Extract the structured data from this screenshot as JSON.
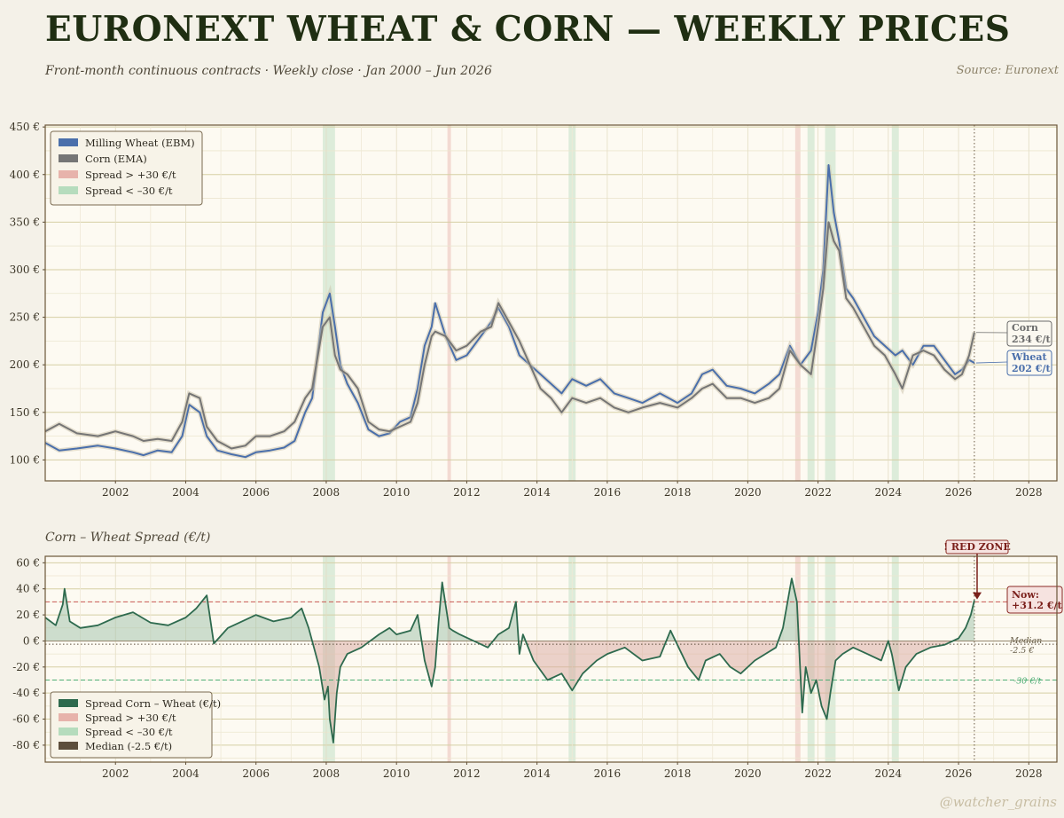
{
  "header": {
    "title": "EURONEXT WHEAT & CORN — WEEKLY PRICES",
    "subtitle": "Front-month continuous contracts  ·  Weekly close  ·  Jan 2000 – Jun 2026",
    "source": "Source: Euronext"
  },
  "lower_panel_title": "Corn – Wheat Spread (€/t)",
  "watermark": "@watcher_grains",
  "colors": {
    "wheat": "#4a6fab",
    "corn": "#757575",
    "spread": "#2e6a4e",
    "red_zone": "#e7b3ab",
    "green_zone": "#b6dcbd",
    "median": "#5c4e3c",
    "background": "#f4f1e8",
    "panel": "#fdfaf2",
    "title": "#1f2e12"
  },
  "chart_data": [
    {
      "type": "line",
      "panel": "prices",
      "ylim": [
        78,
        452
      ],
      "xlim": [
        2000.0,
        2028.8
      ],
      "y_ticks": [
        "100 €",
        "150 €",
        "200 €",
        "250 €",
        "300 €",
        "350 €",
        "400 €",
        "450 €"
      ],
      "x_ticks": [
        "2002",
        "2004",
        "2006",
        "2008",
        "2010",
        "2012",
        "2014",
        "2016",
        "2018",
        "2020",
        "2022",
        "2024",
        "2026",
        "2028"
      ],
      "grid": true,
      "legend_position": "top-left",
      "legend": [
        "Milling Wheat (EBM)",
        "Corn (EMA)",
        "Spread > +30 €/t",
        "Spread < –30 €/t"
      ],
      "series": [
        {
          "name": "Milling Wheat (EBM)",
          "x": [
            2000.0,
            2000.4,
            2000.9,
            2001.5,
            2002.0,
            2002.5,
            2002.8,
            2003.2,
            2003.6,
            2003.9,
            2004.1,
            2004.4,
            2004.6,
            2004.9,
            2005.3,
            2005.7,
            2006.0,
            2006.4,
            2006.8,
            2007.1,
            2007.4,
            2007.6,
            2007.9,
            2008.1,
            2008.25,
            2008.4,
            2008.6,
            2008.9,
            2009.2,
            2009.5,
            2009.8,
            2010.1,
            2010.4,
            2010.6,
            2010.8,
            2011.0,
            2011.1,
            2011.4,
            2011.7,
            2012.0,
            2012.4,
            2012.7,
            2012.9,
            2013.2,
            2013.5,
            2013.8,
            2014.1,
            2014.4,
            2014.7,
            2015.0,
            2015.4,
            2015.8,
            2016.2,
            2016.6,
            2017.0,
            2017.5,
            2018.0,
            2018.4,
            2018.7,
            2019.0,
            2019.4,
            2019.8,
            2020.2,
            2020.6,
            2020.9,
            2021.2,
            2021.5,
            2021.8,
            2022.0,
            2022.15,
            2022.3,
            2022.45,
            2022.6,
            2022.8,
            2023.0,
            2023.3,
            2023.6,
            2023.9,
            2024.2,
            2024.4,
            2024.7,
            2025.0,
            2025.3,
            2025.6,
            2025.9,
            2026.1,
            2026.3,
            2026.45
          ],
          "y": [
            118,
            110,
            112,
            115,
            112,
            108,
            105,
            110,
            108,
            125,
            158,
            150,
            125,
            110,
            106,
            103,
            108,
            110,
            113,
            120,
            150,
            165,
            255,
            275,
            240,
            200,
            180,
            160,
            132,
            125,
            128,
            140,
            145,
            175,
            220,
            240,
            265,
            230,
            205,
            210,
            230,
            245,
            260,
            240,
            210,
            200,
            190,
            180,
            170,
            185,
            178,
            185,
            170,
            165,
            160,
            170,
            160,
            170,
            190,
            195,
            178,
            175,
            170,
            180,
            190,
            220,
            200,
            215,
            255,
            300,
            410,
            360,
            330,
            280,
            270,
            250,
            230,
            220,
            210,
            215,
            200,
            220,
            220,
            205,
            190,
            195,
            205,
            202
          ]
        },
        {
          "name": "Corn (EMA)",
          "x": [
            2000.0,
            2000.4,
            2000.9,
            2001.5,
            2002.0,
            2002.5,
            2002.8,
            2003.2,
            2003.6,
            2003.9,
            2004.1,
            2004.4,
            2004.6,
            2004.9,
            2005.3,
            2005.7,
            2006.0,
            2006.4,
            2006.8,
            2007.1,
            2007.4,
            2007.6,
            2007.9,
            2008.1,
            2008.25,
            2008.4,
            2008.6,
            2008.9,
            2009.2,
            2009.5,
            2009.8,
            2010.1,
            2010.4,
            2010.6,
            2010.8,
            2011.0,
            2011.1,
            2011.4,
            2011.7,
            2012.0,
            2012.4,
            2012.7,
            2012.9,
            2013.2,
            2013.5,
            2013.8,
            2014.1,
            2014.4,
            2014.7,
            2015.0,
            2015.4,
            2015.8,
            2016.2,
            2016.6,
            2017.0,
            2017.5,
            2018.0,
            2018.4,
            2018.7,
            2019.0,
            2019.4,
            2019.8,
            2020.2,
            2020.6,
            2020.9,
            2021.2,
            2021.5,
            2021.8,
            2022.0,
            2022.15,
            2022.3,
            2022.45,
            2022.6,
            2022.8,
            2023.0,
            2023.3,
            2023.6,
            2023.9,
            2024.2,
            2024.4,
            2024.7,
            2025.0,
            2025.3,
            2025.6,
            2025.9,
            2026.1,
            2026.3,
            2026.45
          ],
          "y": [
            130,
            138,
            128,
            125,
            130,
            125,
            120,
            122,
            120,
            140,
            170,
            165,
            135,
            120,
            112,
            115,
            125,
            125,
            130,
            140,
            165,
            175,
            240,
            250,
            210,
            195,
            190,
            175,
            140,
            132,
            130,
            135,
            140,
            160,
            200,
            230,
            235,
            230,
            215,
            220,
            235,
            240,
            265,
            245,
            225,
            200,
            175,
            165,
            150,
            165,
            160,
            165,
            155,
            150,
            155,
            160,
            155,
            165,
            175,
            180,
            165,
            165,
            160,
            165,
            175,
            215,
            200,
            190,
            240,
            280,
            350,
            330,
            320,
            270,
            260,
            240,
            220,
            210,
            190,
            175,
            210,
            215,
            210,
            195,
            185,
            190,
            210,
            234
          ]
        }
      ],
      "end_labels": [
        {
          "series": "Corn (EMA)",
          "name": "Corn",
          "value": "234 €/t"
        },
        {
          "series": "Milling Wheat (EBM)",
          "name": "Wheat",
          "value": "202 €/t"
        }
      ],
      "shaded_zones": {
        "red": [
          [
            2011.45,
            2011.55
          ],
          [
            2021.35,
            2021.5
          ]
        ],
        "green": [
          [
            2007.9,
            2008.25
          ],
          [
            2014.9,
            2015.1
          ],
          [
            2021.7,
            2021.9
          ],
          [
            2022.2,
            2022.5
          ],
          [
            2024.1,
            2024.3
          ]
        ]
      }
    },
    {
      "type": "line",
      "panel": "spread",
      "title": "Corn – Wheat Spread (€/t)",
      "ylim": [
        -93,
        65
      ],
      "xlim": [
        2000.0,
        2028.8
      ],
      "y_ticks": [
        "60 €",
        "40 €",
        "20 €",
        "0 €",
        "-20 €",
        "-40 €",
        "-60 €",
        "-80 €"
      ],
      "x_ticks": [
        "2002",
        "2004",
        "2006",
        "2008",
        "2010",
        "2012",
        "2014",
        "2016",
        "2018",
        "2020",
        "2022",
        "2024",
        "2026",
        "2028"
      ],
      "grid": true,
      "legend_position": "bottom-left",
      "legend": [
        "Spread Corn – Wheat (€/t)",
        "Spread > +30 €/t",
        "Spread < –30 €/t",
        "Median (-2.5 €/t)"
      ],
      "series": [
        {
          "name": "Spread Corn – Wheat (€/t)",
          "x": [
            2000.0,
            2000.3,
            2000.5,
            2000.55,
            2000.7,
            2001.0,
            2001.5,
            2002.0,
            2002.5,
            2003.0,
            2003.5,
            2004.0,
            2004.3,
            2004.6,
            2004.8,
            2005.2,
            2005.6,
            2006.0,
            2006.5,
            2007.0,
            2007.3,
            2007.5,
            2007.8,
            2007.95,
            2008.05,
            2008.1,
            2008.2,
            2008.3,
            2008.4,
            2008.6,
            2009.0,
            2009.5,
            2009.8,
            2010.0,
            2010.4,
            2010.6,
            2010.8,
            2011.0,
            2011.1,
            2011.2,
            2011.3,
            2011.5,
            2011.6,
            2011.8,
            2012.2,
            2012.6,
            2012.9,
            2013.2,
            2013.4,
            2013.5,
            2013.6,
            2013.9,
            2014.3,
            2014.7,
            2015.0,
            2015.3,
            2015.7,
            2016.0,
            2016.5,
            2017.0,
            2017.5,
            2017.8,
            2018.3,
            2018.6,
            2018.8,
            2019.2,
            2019.5,
            2019.8,
            2020.2,
            2020.5,
            2020.8,
            2021.0,
            2021.25,
            2021.4,
            2021.55,
            2021.65,
            2021.8,
            2021.95,
            2022.1,
            2022.25,
            2022.35,
            2022.5,
            2022.7,
            2023.0,
            2023.4,
            2023.8,
            2024.0,
            2024.1,
            2024.3,
            2024.5,
            2024.8,
            2025.2,
            2025.6,
            2026.0,
            2026.2,
            2026.35,
            2026.45
          ],
          "y": [
            18,
            12,
            28,
            40,
            15,
            10,
            12,
            18,
            22,
            14,
            12,
            18,
            25,
            35,
            -2,
            10,
            15,
            20,
            15,
            18,
            25,
            10,
            -20,
            -45,
            -35,
            -60,
            -78,
            -40,
            -20,
            -10,
            -5,
            5,
            10,
            5,
            8,
            20,
            -15,
            -35,
            -20,
            15,
            45,
            10,
            8,
            5,
            0,
            -5,
            5,
            10,
            30,
            -10,
            5,
            -15,
            -30,
            -25,
            -38,
            -25,
            -15,
            -10,
            -5,
            -15,
            -12,
            8,
            -20,
            -30,
            -15,
            -10,
            -20,
            -25,
            -15,
            -10,
            -5,
            10,
            48,
            30,
            -55,
            -20,
            -40,
            -30,
            -50,
            -60,
            -40,
            -15,
            -10,
            -5,
            -10,
            -15,
            0,
            -10,
            -38,
            -20,
            -10,
            -5,
            -3,
            2,
            10,
            20,
            31.2
          ]
        }
      ],
      "reference_lines": [
        {
          "label": "Median",
          "sub_label": "-2.5 €",
          "value": -2.5
        },
        {
          "label": "+30 €/t",
          "value": 30
        },
        {
          "label": "-30 €/t",
          "value": -30
        }
      ],
      "annotations": {
        "alert": "! RED ZONE",
        "now_label": "Now:",
        "now_value": "+31.2 €/t",
        "median_label": "Median",
        "median_value": "-2.5 €",
        "green_line_label": "-30 €/t"
      },
      "shaded_zones": {
        "red": [
          [
            2011.45,
            2011.55
          ],
          [
            2021.35,
            2021.5
          ]
        ],
        "green": [
          [
            2007.9,
            2008.25
          ],
          [
            2014.9,
            2015.1
          ],
          [
            2021.7,
            2021.9
          ],
          [
            2022.2,
            2022.5
          ],
          [
            2024.1,
            2024.3
          ]
        ]
      }
    }
  ]
}
